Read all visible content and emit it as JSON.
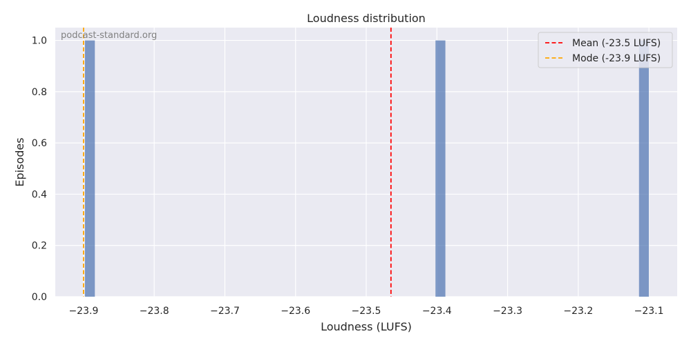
{
  "chart_data": {
    "type": "bar",
    "title": "Loudness distribution",
    "xlabel": "Loudness (LUFS)",
    "ylabel": "Episodes",
    "watermark": "podcast-standard.org",
    "xlim": [
      -23.94,
      -23.06
    ],
    "ylim": [
      0,
      1.05
    ],
    "xticks": [
      -23.9,
      -23.8,
      -23.7,
      -23.6,
      -23.5,
      -23.4,
      -23.3,
      -23.2,
      -23.1
    ],
    "xtick_labels": [
      "−23.9",
      "−23.8",
      "−23.7",
      "−23.6",
      "−23.5",
      "−23.4",
      "−23.3",
      "−23.2",
      "−23.1"
    ],
    "yticks": [
      0.0,
      0.2,
      0.4,
      0.6,
      0.8,
      1.0
    ],
    "ytick_labels": [
      "0.0",
      "0.2",
      "0.4",
      "0.6",
      "0.8",
      "1.0"
    ],
    "bins": [
      {
        "x0": -23.898,
        "x1": -23.884,
        "count": 1
      },
      {
        "x0": -23.402,
        "x1": -23.388,
        "count": 1
      },
      {
        "x0": -23.114,
        "x1": -23.1,
        "count": 1
      }
    ],
    "bar_color": "#4c72b0",
    "reference_lines": [
      {
        "label": "Mean (-23.5 LUFS)",
        "x": -23.465,
        "color": "#ff0000"
      },
      {
        "label": "Mode (-23.9 LUFS)",
        "x": -23.9,
        "color": "#ffa500"
      }
    ],
    "legend_position": "top-right",
    "grid": true
  }
}
